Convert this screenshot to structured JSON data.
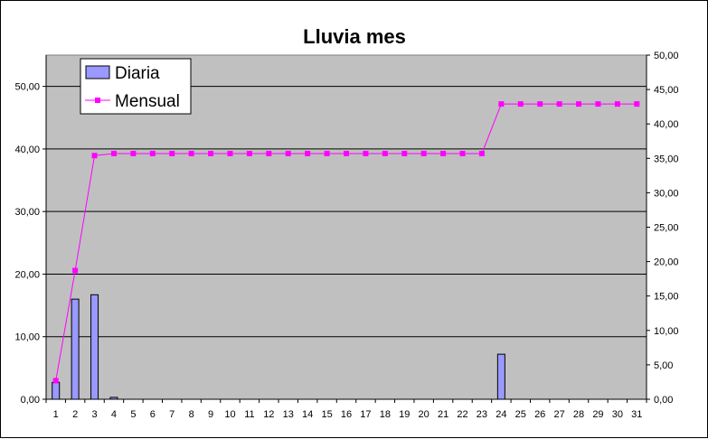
{
  "chart_data": {
    "type": "bar",
    "title": "Lluvia mes",
    "xlabel": "",
    "ylabel": "",
    "categories": [
      "1",
      "2",
      "3",
      "4",
      "5",
      "6",
      "7",
      "8",
      "9",
      "10",
      "11",
      "12",
      "13",
      "14",
      "15",
      "16",
      "17",
      "18",
      "19",
      "20",
      "21",
      "22",
      "23",
      "24",
      "25",
      "26",
      "27",
      "28",
      "29",
      "30",
      "31"
    ],
    "y_left": {
      "lim": [
        0,
        55
      ],
      "ticks": [
        0,
        10,
        20,
        30,
        40,
        50
      ],
      "tick_labels": [
        "0,00",
        "10,00",
        "20,00",
        "30,00",
        "40,00",
        "50,00"
      ]
    },
    "y_right": {
      "lim": [
        0,
        50
      ],
      "ticks": [
        0,
        5,
        10,
        15,
        20,
        25,
        30,
        35,
        40,
        45,
        50
      ],
      "tick_labels": [
        "0,00",
        "5,00",
        "10,00",
        "15,00",
        "20,00",
        "25,00",
        "30,00",
        "35,00",
        "40,00",
        "45,00",
        "50,00"
      ]
    },
    "series": [
      {
        "name": "Diaria",
        "type": "bar",
        "axis": "left",
        "color": "#9999ff",
        "values": [
          2.7,
          16.0,
          16.7,
          0.3,
          0,
          0,
          0,
          0,
          0,
          0,
          0,
          0,
          0,
          0,
          0,
          0,
          0,
          0,
          0,
          0,
          0,
          0,
          0,
          7.2,
          0,
          0,
          0,
          0,
          0,
          0,
          0
        ]
      },
      {
        "name": "Mensual",
        "type": "line",
        "axis": "right",
        "color": "#ff00ff",
        "values": [
          2.7,
          18.7,
          35.4,
          35.7,
          35.7,
          35.7,
          35.7,
          35.7,
          35.7,
          35.7,
          35.7,
          35.7,
          35.7,
          35.7,
          35.7,
          35.7,
          35.7,
          35.7,
          35.7,
          35.7,
          35.7,
          35.7,
          35.7,
          42.9,
          42.9,
          42.9,
          42.9,
          42.9,
          42.9,
          42.9,
          42.9
        ]
      }
    ],
    "grid": true,
    "plot_background": "#c0c0c0",
    "legend_position": "top-left"
  }
}
